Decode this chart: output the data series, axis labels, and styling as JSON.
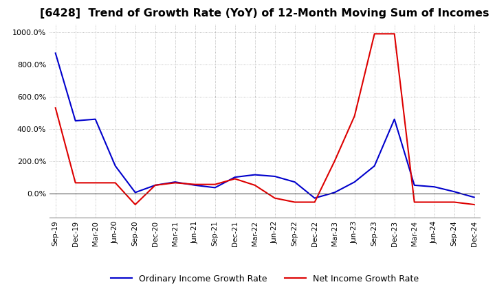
{
  "title": "[6428]  Trend of Growth Rate (YoY) of 12-Month Moving Sum of Incomes",
  "title_fontsize": 11.5,
  "xlabel": "",
  "ylabel": "",
  "ylim": [
    -150,
    1050
  ],
  "yticks": [
    0,
    200,
    400,
    600,
    800,
    1000
  ],
  "background_color": "#ffffff",
  "grid_color": "#aaaaaa",
  "ordinary_color": "#0000cc",
  "net_color": "#dd0000",
  "legend_labels": [
    "Ordinary Income Growth Rate",
    "Net Income Growth Rate"
  ],
  "x_labels": [
    "Sep-19",
    "Dec-19",
    "Mar-20",
    "Jun-20",
    "Sep-20",
    "Dec-20",
    "Mar-21",
    "Jun-21",
    "Sep-21",
    "Dec-21",
    "Mar-22",
    "Jun-22",
    "Sep-22",
    "Dec-22",
    "Mar-23",
    "Jun-23",
    "Sep-23",
    "Dec-23",
    "Mar-24",
    "Jun-24",
    "Sep-24",
    "Dec-24"
  ],
  "ordinary_income_growth": [
    870,
    450,
    460,
    170,
    5,
    50,
    70,
    50,
    35,
    100,
    115,
    105,
    70,
    -30,
    5,
    70,
    170,
    460,
    50,
    40,
    10,
    -25
  ],
  "net_income_growth": [
    530,
    65,
    65,
    65,
    -70,
    50,
    65,
    55,
    55,
    90,
    50,
    -30,
    -55,
    -55,
    200,
    480,
    990,
    990,
    -55,
    -55,
    -55,
    -70
  ]
}
